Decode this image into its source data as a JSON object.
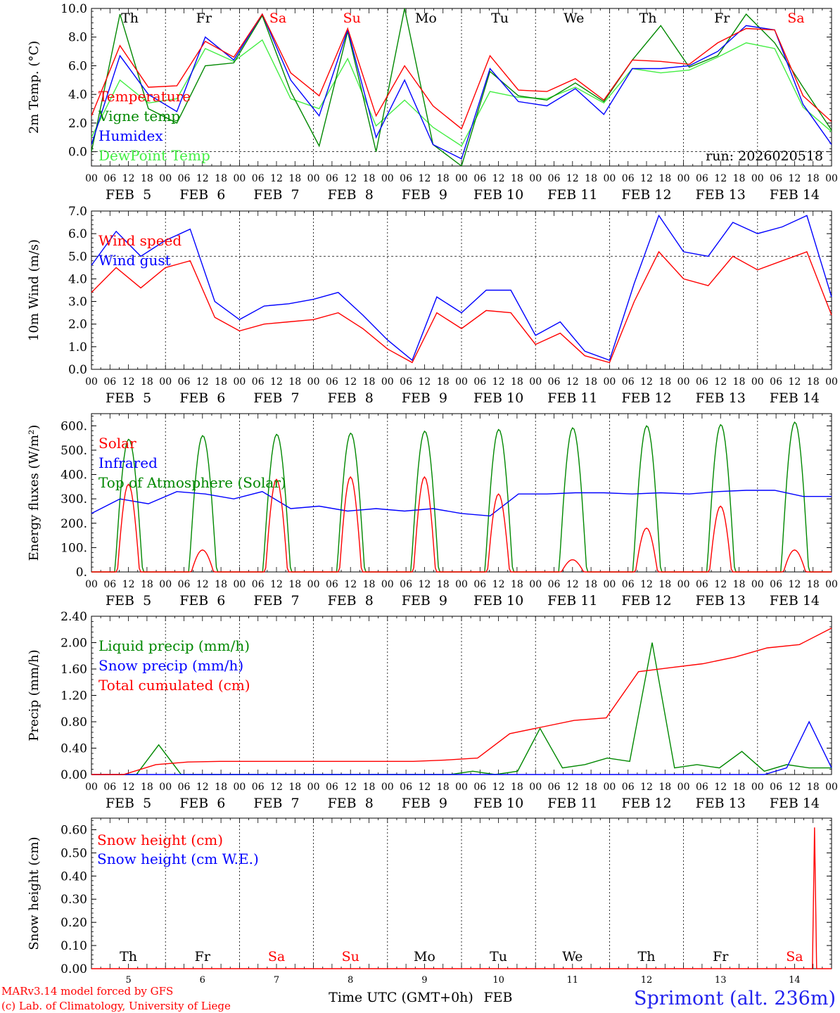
{
  "chart_data": [
    {
      "id": "temp",
      "type": "line",
      "ylabel": "2m Temp. (°C)",
      "ylim": [
        -1.0,
        10.0
      ],
      "yticks": [
        "0.0",
        "2.0",
        "4.0",
        "6.0",
        "8.0",
        "10.0"
      ],
      "ytick_values": [
        0,
        2,
        4,
        6,
        8,
        10
      ],
      "dashed_ref": 0,
      "day_labels": [
        "Th",
        "Fr",
        "Sa",
        "Su",
        "Mo",
        "Tu",
        "We",
        "Th",
        "Fr",
        "Sa"
      ],
      "run_label": "run: 2026020518",
      "x_step_hours": 12,
      "series": [
        {
          "name": "Temperature",
          "color": "#ff0000",
          "values": [
            2.5,
            7.4,
            4.5,
            4.6,
            7.7,
            6.6,
            9.6,
            5.5,
            3.9,
            8.6,
            2.5,
            6.0,
            3.2,
            1.6,
            6.7,
            4.3,
            4.2,
            5.1,
            3.6,
            6.4,
            6.3,
            6.1,
            7.6,
            8.6,
            8.5,
            3.9,
            2.1
          ]
        },
        {
          "name": "Vigne temp",
          "color": "#008800",
          "values": [
            0.0,
            9.6,
            3.0,
            2.0,
            6.0,
            6.2,
            9.5,
            4.2,
            0.4,
            8.4,
            0.0,
            10.0,
            0.5,
            -1.0,
            5.6,
            3.9,
            3.6,
            4.8,
            3.5,
            6.4,
            8.8,
            5.9,
            6.7,
            9.6,
            7.6,
            4.5,
            1.5
          ]
        },
        {
          "name": "Humidex",
          "color": "#0000ff",
          "values": [
            0.5,
            6.7,
            4.0,
            2.8,
            8.0,
            6.4,
            9.6,
            5.0,
            2.5,
            8.5,
            1.0,
            5.0,
            0.5,
            -0.5,
            5.8,
            3.5,
            3.2,
            4.4,
            2.6,
            5.8,
            5.8,
            6.0,
            7.0,
            8.8,
            8.5,
            3.3,
            0.5
          ]
        },
        {
          "name": "DewPoint Temp",
          "color": "#44ee44",
          "values": [
            1.0,
            5.0,
            3.4,
            3.7,
            7.2,
            6.3,
            7.8,
            3.7,
            3.0,
            6.5,
            1.8,
            3.6,
            1.7,
            0.4,
            4.2,
            3.8,
            3.7,
            4.5,
            3.4,
            5.8,
            5.5,
            5.7,
            6.6,
            7.6,
            7.2,
            3.1,
            1.4
          ]
        }
      ]
    },
    {
      "id": "wind",
      "type": "line",
      "ylabel": "10m Wind (m/s)",
      "ylim": [
        0.0,
        7.0
      ],
      "yticks": [
        "0.0",
        "1.0",
        "2.0",
        "3.0",
        "4.0",
        "5.0",
        "6.0",
        "7.0"
      ],
      "ytick_values": [
        0,
        1,
        2,
        3,
        4,
        5,
        6,
        7
      ],
      "dashed_ref": 5,
      "x_step_hours": 12,
      "series": [
        {
          "name": "Wind speed",
          "color": "#ff0000",
          "values": [
            3.4,
            4.5,
            3.6,
            4.5,
            4.8,
            2.3,
            1.7,
            2.0,
            2.1,
            2.2,
            2.5,
            1.8,
            0.9,
            0.3,
            2.5,
            1.8,
            2.6,
            2.5,
            1.1,
            1.6,
            0.6,
            0.3,
            3.0,
            5.2,
            4.0,
            3.7,
            5.0,
            4.4,
            4.8,
            5.2,
            2.4
          ]
        },
        {
          "name": "Wind gust",
          "color": "#0000ff",
          "values": [
            4.6,
            6.1,
            5.0,
            5.7,
            6.2,
            3.0,
            2.2,
            2.8,
            2.9,
            3.1,
            3.4,
            2.4,
            1.3,
            0.4,
            3.2,
            2.5,
            3.5,
            3.5,
            1.5,
            2.1,
            0.8,
            0.4,
            3.8,
            6.8,
            5.2,
            5.0,
            6.5,
            6.0,
            6.3,
            6.8,
            3.2
          ]
        }
      ]
    },
    {
      "id": "flux",
      "type": "line",
      "ylabel": "Energy fluxes (W/m²)",
      "ylim": [
        0,
        650
      ],
      "yticks": [
        "0.",
        "100.",
        "200.",
        "300.",
        "400.",
        "500.",
        "600."
      ],
      "ytick_values": [
        0,
        100,
        200,
        300,
        400,
        500,
        600
      ],
      "x_step_hours": 12,
      "series": [
        {
          "name": "Solar",
          "color": "#ff0000",
          "peaks_by_day": [
            360,
            90,
            380,
            390,
            390,
            320,
            50,
            180,
            270,
            90
          ]
        },
        {
          "name": "Infrared",
          "color": "#0000ff",
          "values": [
            240,
            300,
            280,
            330,
            320,
            300,
            330,
            260,
            270,
            250,
            260,
            250,
            260,
            240,
            230,
            320,
            320,
            325,
            325,
            320,
            325,
            320,
            330,
            335,
            335,
            310,
            310
          ]
        },
        {
          "name": "Top of Atmosphere (Solar)",
          "color": "#008800",
          "peaks_by_day": [
            545,
            560,
            565,
            570,
            578,
            585,
            592,
            600,
            605,
            615
          ]
        }
      ]
    },
    {
      "id": "precip",
      "type": "line",
      "ylabel": "Precip (mm/h)",
      "ylim": [
        0.0,
        2.4
      ],
      "yticks": [
        "0.00",
        "0.40",
        "0.80",
        "1.20",
        "1.60",
        "2.00",
        "2.40"
      ],
      "ytick_values": [
        0,
        0.4,
        0.8,
        1.2,
        1.6,
        2.0,
        2.4
      ],
      "x_step_hours": 12,
      "series": [
        {
          "name": "Liquid precip (mm/h)",
          "color": "#008800",
          "values": [
            0,
            0,
            0,
            0.45,
            0,
            0,
            0,
            0,
            0,
            0,
            0,
            0,
            0,
            0,
            0,
            0,
            0,
            0.05,
            0,
            0.05,
            0.7,
            0.1,
            0.15,
            0.25,
            0.2,
            2.0,
            0.1,
            0.15,
            0.1,
            0.35,
            0.05,
            0.15,
            0.1,
            0.1
          ]
        },
        {
          "name": "Snow precip (mm/h)",
          "color": "#0000ff",
          "values": [
            0,
            0,
            0,
            0,
            0,
            0,
            0,
            0,
            0,
            0,
            0,
            0,
            0,
            0,
            0,
            0,
            0,
            0,
            0,
            0,
            0,
            0,
            0,
            0,
            0,
            0,
            0,
            0,
            0,
            0,
            0,
            0.1,
            0.8,
            0.1
          ]
        },
        {
          "name": "Total cumulated (cm)",
          "color": "#ff0000",
          "values": [
            0,
            0,
            0.15,
            0.19,
            0.2,
            0.2,
            0.2,
            0.2,
            0.2,
            0.2,
            0.2,
            0.22,
            0.25,
            0.62,
            0.72,
            0.82,
            0.86,
            1.56,
            1.62,
            1.68,
            1.78,
            1.92,
            1.97,
            2.22
          ]
        }
      ]
    },
    {
      "id": "snow",
      "type": "line",
      "ylabel": "Snow height (cm)",
      "ylim": [
        0.0,
        0.65
      ],
      "yticks": [
        "0.00",
        "0.10",
        "0.20",
        "0.30",
        "0.40",
        "0.50",
        "0.60"
      ],
      "ytick_values": [
        0,
        0.1,
        0.2,
        0.3,
        0.4,
        0.5,
        0.6
      ],
      "day_labels": [
        "Th",
        "Fr",
        "Sa",
        "Su",
        "Mo",
        "Tu",
        "We",
        "Th",
        "Fr",
        "Sa"
      ],
      "day_numbers": [
        "5",
        "6",
        "7",
        "8",
        "9",
        "10",
        "11",
        "12",
        "13",
        "14"
      ],
      "series": [
        {
          "name": "Snow height (cm)",
          "color": "#ff0000",
          "spike_day": 9.77,
          "spike_value": 0.61
        },
        {
          "name": "Snow height (cm W.E.)",
          "color": "#0000ff"
        }
      ]
    }
  ],
  "hour_ticks": [
    "00",
    "06",
    "12",
    "18"
  ],
  "date_labels": [
    "FEB  5",
    "FEB  6",
    "FEB  7",
    "FEB  8",
    "FEB  9",
    "FEB 10",
    "FEB 11",
    "FEB 12",
    "FEB 13",
    "FEB 14"
  ],
  "weekend_color": "#ff0000",
  "weekday_color": "#000000",
  "footer": {
    "model": "MARv3.14 model forced by GFS",
    "credit": "(c) Lab. of Climatology, University of Liege",
    "axis_title": "Time UTC (GMT+0h)",
    "month": "FEB",
    "station": "Sprimont (alt. 236m)"
  }
}
